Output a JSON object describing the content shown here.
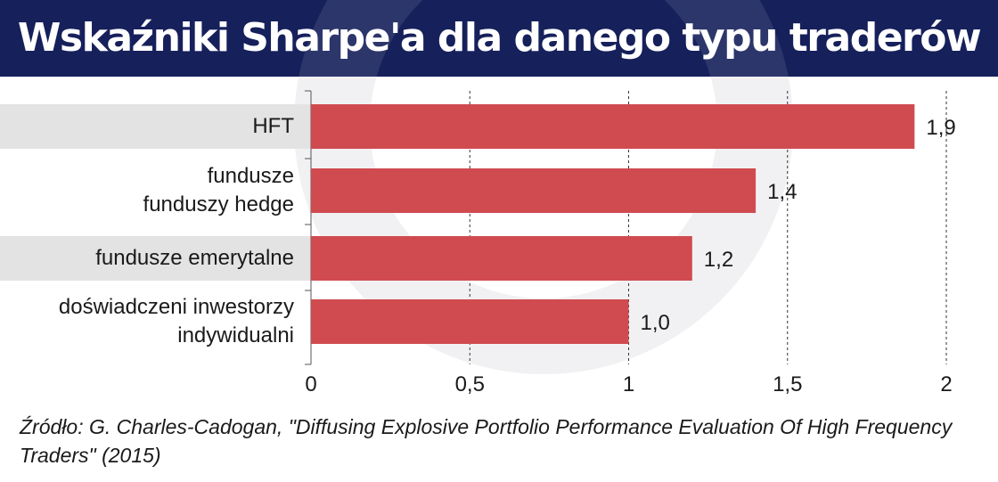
{
  "title": "Wskaźniki Sharpe'a dla danego typu traderów",
  "source": "Źródło: G. Charles-Cadogan, \"Diffusing Explosive Portfolio Performance Evaluation Of High Frequency Traders\" (2015)",
  "colors": {
    "header_bg": "#16205b",
    "bar": "#cf4b50",
    "label_band": "#e3e3e3",
    "grid": "#333333"
  },
  "chart_data": {
    "type": "bar",
    "orientation": "horizontal",
    "categories": [
      "HFT",
      "fundusze\nfunduszy hedge",
      "fundusze emerytalne",
      "doświadczeni inwestorzy\nindywidualni"
    ],
    "values": [
      1.9,
      1.4,
      1.2,
      1.0
    ],
    "value_labels": [
      "1,9",
      "1,4",
      "1,2",
      "1,0"
    ],
    "xlim": [
      0,
      2
    ],
    "xticks": [
      0,
      0.5,
      1,
      1.5,
      2
    ],
    "xtick_labels": [
      "0",
      "0,5",
      "1",
      "1,5",
      "2"
    ],
    "grid": "vertical dashed",
    "title": "Wskaźniki Sharpe'a dla danego typu traderów",
    "xlabel": "",
    "ylabel": ""
  }
}
